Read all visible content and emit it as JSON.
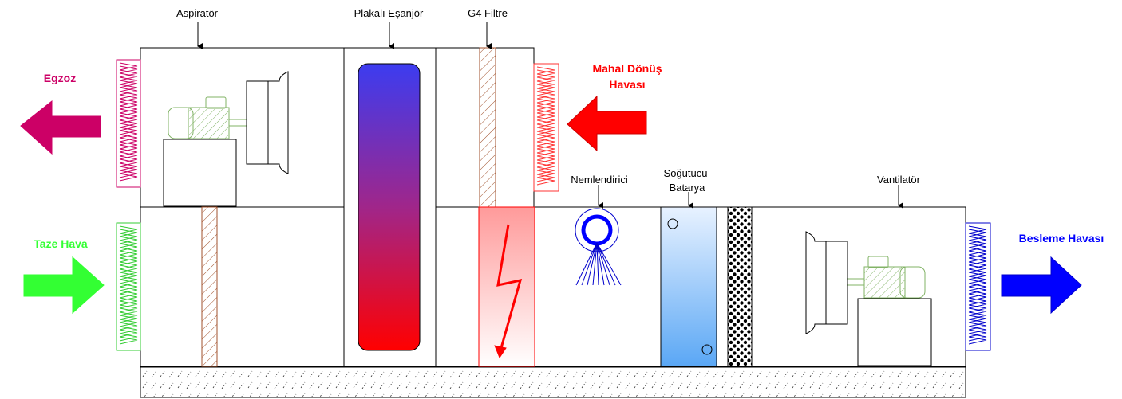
{
  "labels": {
    "aspirator": "Aspiratör",
    "exchanger": "Plakalı Eşanjör",
    "filter": "G4 Filtre",
    "humidifier": "Nemlendirici",
    "cooler_line1": "Soğutucu",
    "cooler_line2": "Batarya",
    "fan": "Vantilatör",
    "exhaust": "Egzoz",
    "return_line1": "Mahal Dönüş",
    "return_line2": "Havası",
    "fresh": "Taze Hava",
    "supply": "Besleme Havası"
  },
  "colors": {
    "exhaust": "#cc0066",
    "return": "#ff0000",
    "fresh": "#33ff33",
    "supply": "#0000ff",
    "motor": "#82b366",
    "filter_hatch": "#a0522d",
    "heater_stroke": "#ff0000"
  },
  "icons": [
    "exhaust-arrow-icon",
    "return-arrow-icon",
    "fresh-arrow-icon",
    "supply-arrow-icon",
    "motor-icon",
    "fan-housing-icon",
    "humidifier-nozzle-icon",
    "lightning-icon"
  ]
}
